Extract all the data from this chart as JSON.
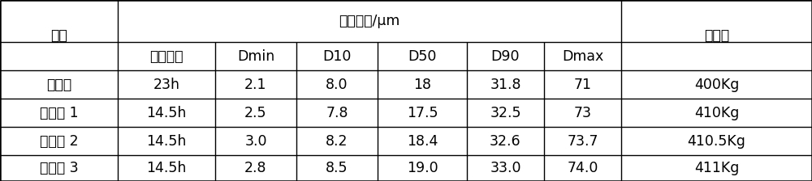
{
  "title_row1_col0": "例子",
  "title_row1_mid": "粒度分布/μm",
  "title_row1_last": "出料量",
  "title_row2": [
    "制程时间",
    "Dmin",
    "D10",
    "D50",
    "D90",
    "Dmax"
  ],
  "rows": [
    [
      "对比例",
      "23h",
      "2.1",
      "8.0",
      "18",
      "31.8",
      "71",
      "400Kg"
    ],
    [
      "实施例 1",
      "14.5h",
      "2.5",
      "7.8",
      "17.5",
      "32.5",
      "73",
      "410Kg"
    ],
    [
      "实施例 2",
      "14.5h",
      "3.0",
      "8.2",
      "18.4",
      "32.6",
      "73.7",
      "410.5Kg"
    ],
    [
      "实施例 3",
      "14.5h",
      "2.8",
      "8.5",
      "19.0",
      "33.0",
      "74.0",
      "411Kg"
    ]
  ],
  "bg_color": "#ffffff",
  "line_color": "#000000",
  "text_color": "#000000",
  "font_size": 12.5
}
